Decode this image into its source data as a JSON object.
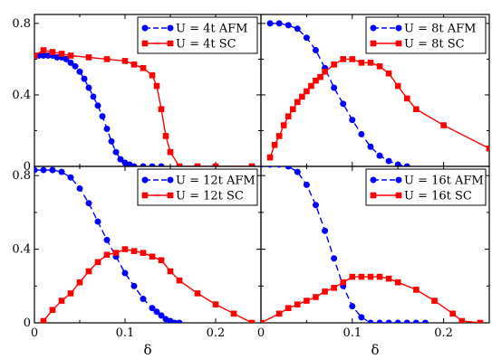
{
  "chart_data": {
    "type": "line",
    "xlabel": "δ",
    "x_ticks": [
      "0",
      "0.1",
      "0.2"
    ],
    "xlim": [
      0,
      0.25
    ],
    "y_ticks": [
      "0",
      "0.4",
      "0.8"
    ],
    "ylim": [
      0,
      0.85
    ],
    "grid": false,
    "legend_placement": "top-right",
    "colors": {
      "AFM": "#0000ff",
      "SC": "#ff0000"
    },
    "panels": [
      {
        "series": [
          {
            "name": "U = 4t AFM",
            "marker": "circle",
            "dashed": true,
            "x": [
              0.0,
              0.005,
              0.01,
              0.015,
              0.02,
              0.025,
              0.03,
              0.035,
              0.04,
              0.045,
              0.05,
              0.055,
              0.06,
              0.065,
              0.07,
              0.075,
              0.08,
              0.085,
              0.09,
              0.095,
              0.1,
              0.105,
              0.11,
              0.12,
              0.13,
              0.14
            ],
            "y": [
              0.62,
              0.62,
              0.62,
              0.62,
              0.62,
              0.61,
              0.61,
              0.6,
              0.58,
              0.56,
              0.53,
              0.49,
              0.44,
              0.39,
              0.34,
              0.28,
              0.21,
              0.14,
              0.08,
              0.04,
              0.02,
              0.01,
              0.0,
              0.0,
              0.0,
              0.0
            ]
          },
          {
            "name": "U = 4t  SC",
            "marker": "square",
            "dashed": false,
            "x": [
              0.0,
              0.01,
              0.02,
              0.03,
              0.04,
              0.06,
              0.08,
              0.1,
              0.11,
              0.12,
              0.13,
              0.135,
              0.14,
              0.145,
              0.15,
              0.16,
              0.18,
              0.2,
              0.24
            ],
            "y": [
              0.62,
              0.65,
              0.64,
              0.63,
              0.62,
              0.61,
              0.6,
              0.59,
              0.57,
              0.55,
              0.51,
              0.45,
              0.32,
              0.17,
              0.08,
              0.0,
              0.0,
              0.0,
              0.0
            ]
          }
        ]
      },
      {
        "series": [
          {
            "name": "U = 8t AFM",
            "marker": "circle",
            "dashed": true,
            "x": [
              0.01,
              0.02,
              0.03,
              0.04,
              0.05,
              0.06,
              0.07,
              0.08,
              0.09,
              0.1,
              0.11,
              0.12,
              0.13,
              0.14,
              0.15,
              0.16
            ],
            "y": [
              0.8,
              0.8,
              0.79,
              0.77,
              0.72,
              0.65,
              0.55,
              0.44,
              0.35,
              0.26,
              0.18,
              0.11,
              0.06,
              0.03,
              0.01,
              0.0
            ]
          },
          {
            "name": "U = 8t  SC",
            "marker": "square",
            "dashed": false,
            "x": [
              0.01,
              0.015,
              0.02,
              0.025,
              0.03,
              0.035,
              0.04,
              0.045,
              0.05,
              0.055,
              0.06,
              0.065,
              0.07,
              0.08,
              0.09,
              0.1,
              0.11,
              0.12,
              0.13,
              0.14,
              0.15,
              0.16,
              0.17,
              0.2,
              0.25
            ],
            "y": [
              0.05,
              0.12,
              0.17,
              0.23,
              0.28,
              0.32,
              0.36,
              0.39,
              0.42,
              0.45,
              0.48,
              0.5,
              0.53,
              0.57,
              0.6,
              0.6,
              0.58,
              0.58,
              0.56,
              0.52,
              0.45,
              0.38,
              0.32,
              0.23,
              0.1
            ]
          }
        ]
      },
      {
        "series": [
          {
            "name": "U = 12t AFM",
            "marker": "circle",
            "dashed": true,
            "x": [
              0.0,
              0.01,
              0.02,
              0.03,
              0.04,
              0.05,
              0.06,
              0.07,
              0.08,
              0.09,
              0.1,
              0.11,
              0.12,
              0.13,
              0.135,
              0.14,
              0.145,
              0.15,
              0.155,
              0.16
            ],
            "y": [
              0.83,
              0.83,
              0.83,
              0.82,
              0.79,
              0.73,
              0.65,
              0.55,
              0.45,
              0.36,
              0.27,
              0.2,
              0.13,
              0.08,
              0.06,
              0.04,
              0.02,
              0.01,
              0.0,
              0.0
            ]
          },
          {
            "name": "U = 12t  SC",
            "marker": "square",
            "dashed": false,
            "x": [
              0.01,
              0.02,
              0.03,
              0.04,
              0.05,
              0.06,
              0.07,
              0.08,
              0.09,
              0.1,
              0.11,
              0.12,
              0.13,
              0.14,
              0.15,
              0.16,
              0.18,
              0.2,
              0.22,
              0.24
            ],
            "y": [
              0.01,
              0.07,
              0.12,
              0.16,
              0.22,
              0.28,
              0.33,
              0.37,
              0.38,
              0.4,
              0.39,
              0.38,
              0.36,
              0.34,
              0.28,
              0.23,
              0.16,
              0.1,
              0.05,
              0.0
            ]
          }
        ]
      },
      {
        "series": [
          {
            "name": "U = 16t AFM",
            "marker": "circle",
            "dashed": true,
            "x": [
              0.0,
              0.01,
              0.02,
              0.03,
              0.04,
              0.05,
              0.06,
              0.07,
              0.08,
              0.09,
              0.1,
              0.11,
              0.12,
              0.13,
              0.14,
              0.15,
              0.16,
              0.17,
              0.18
            ],
            "y": [
              0.86,
              0.86,
              0.86,
              0.85,
              0.82,
              0.75,
              0.64,
              0.5,
              0.35,
              0.2,
              0.09,
              0.03,
              0.0,
              0.0,
              0.0,
              0.0,
              0.0,
              0.0,
              0.0
            ]
          },
          {
            "name": "U = 16t  SC",
            "marker": "square",
            "dashed": false,
            "x": [
              0.0,
              0.02,
              0.03,
              0.04,
              0.05,
              0.06,
              0.07,
              0.08,
              0.09,
              0.1,
              0.11,
              0.12,
              0.13,
              0.14,
              0.15,
              0.17,
              0.19,
              0.21,
              0.22,
              0.24
            ],
            "y": [
              0.0,
              0.05,
              0.08,
              0.1,
              0.12,
              0.14,
              0.17,
              0.19,
              0.22,
              0.25,
              0.25,
              0.25,
              0.25,
              0.24,
              0.22,
              0.18,
              0.12,
              0.05,
              0.01,
              0.0
            ]
          }
        ]
      }
    ]
  }
}
